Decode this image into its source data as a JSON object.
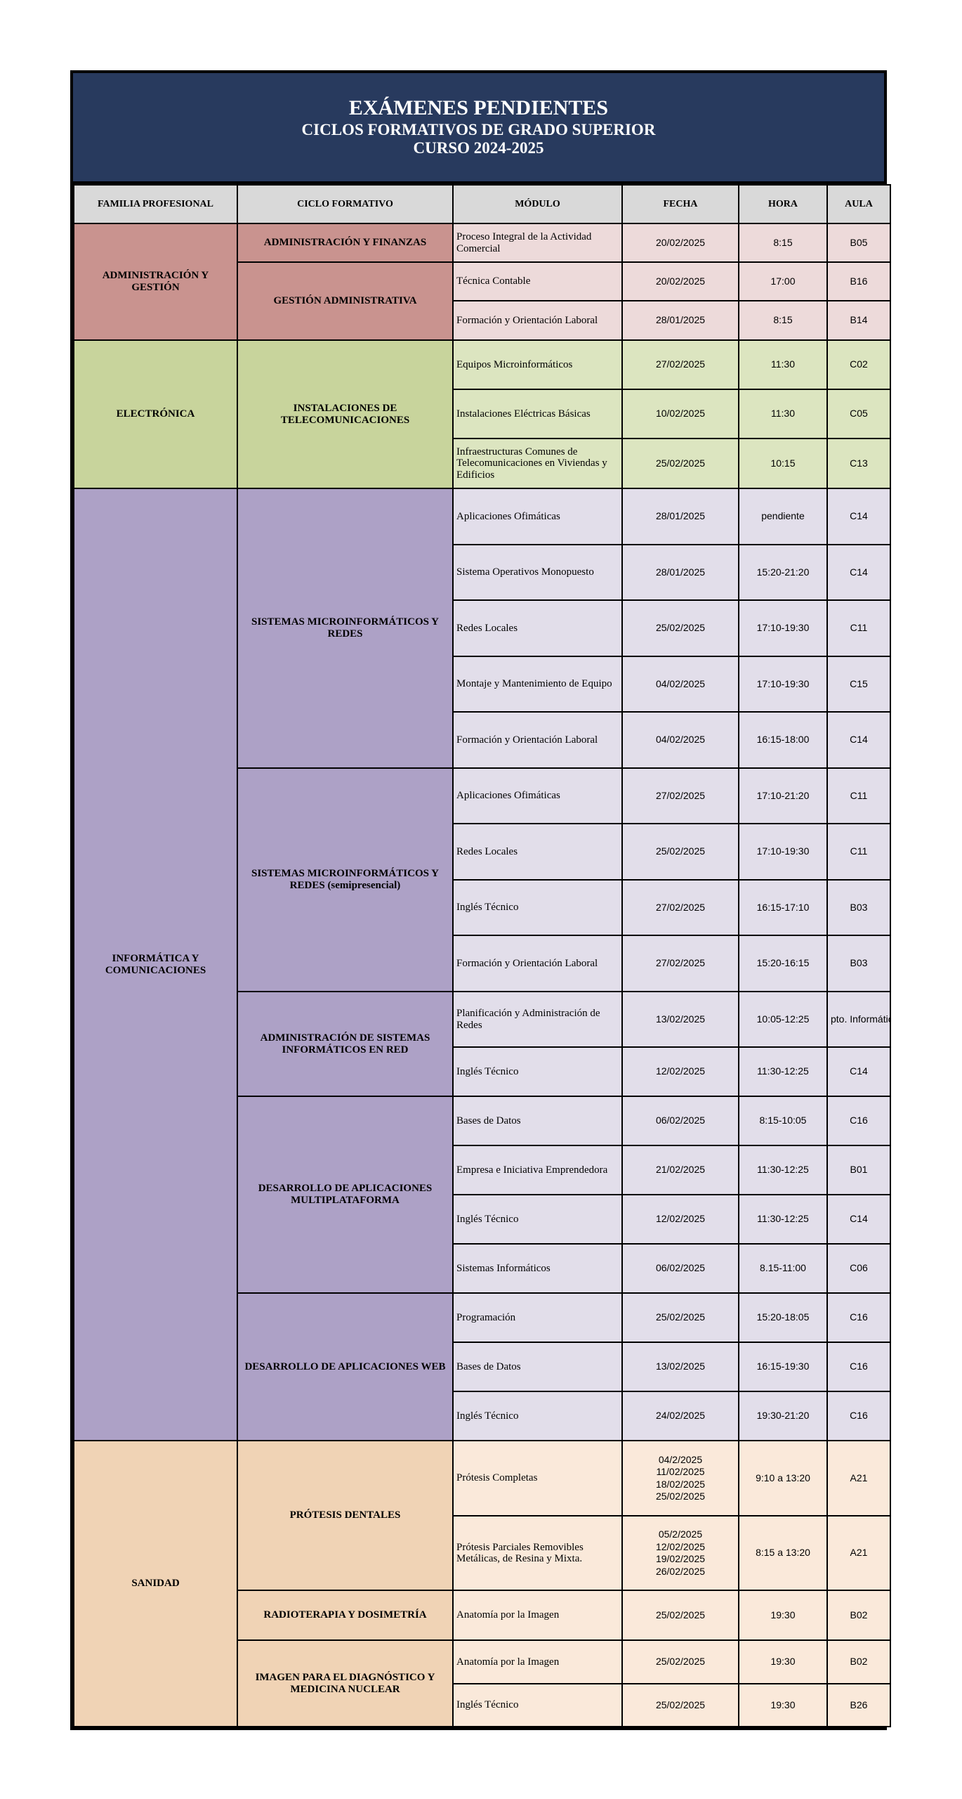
{
  "title": {
    "line1": "EXÁMENES PENDIENTES",
    "line2": "CICLOS FORMATIVOS DE GRADO SUPERIOR",
    "line3": "CURSO 2024-2025"
  },
  "colors": {
    "title_bg": "#283a5e",
    "header_bg": "#d9d9d9"
  },
  "headers": [
    "FAMILIA PROFESIONAL",
    "CICLO FORMATIVO",
    "MÓDULO",
    "FECHA",
    "HORA",
    "AULA"
  ],
  "familias": [
    {
      "name": "ADMINISTRACIÓN Y GESTIÓN",
      "color": "#c9938f",
      "light": "#eddada",
      "ciclos": [
        {
          "name": "ADMINISTRACIÓN Y FINANZAS",
          "modulos": [
            {
              "modulo": " Proceso Integral de la Actividad Comercial",
              "fecha": "20/02/2025",
              "hora": "8:15",
              "aula": "B05"
            }
          ]
        },
        {
          "name": "GESTIÓN ADMINISTRATIVA",
          "modulos": [
            {
              "modulo": "Técnica Contable",
              "fecha": "20/02/2025",
              "hora": "17:00",
              "aula": "B16"
            },
            {
              "modulo": "Formación y Orientación Laboral",
              "fecha": "28/01/2025",
              "hora": "8:15",
              "aula": "B14"
            }
          ]
        }
      ]
    },
    {
      "name": "ELECTRÓNICA",
      "color": "#c8d49c",
      "light": "#dce5c0",
      "ciclos": [
        {
          "name": "INSTALACIONES DE TELECOMUNICACIONES",
          "modulos": [
            {
              "modulo": "Equipos Microinformáticos",
              "fecha": "27/02/2025",
              "hora": "11:30",
              "aula": "C02"
            },
            {
              "modulo": "Instalaciones Eléctricas Básicas",
              "fecha": "10/02/2025",
              "hora": "11:30",
              "aula": "C05"
            },
            {
              "modulo": "Infraestructuras Comunes de Telecomunicaciones en Viviendas y Edificios",
              "fecha": "25/02/2025",
              "hora": "10:15",
              "aula": "C13"
            }
          ]
        }
      ]
    },
    {
      "name": "INFORMÁTICA Y COMUNICACIONES",
      "color": "#ada1c6",
      "light": "#e2deea",
      "ciclos": [
        {
          "name": "SISTEMAS MICROINFORMÁTICOS Y REDES",
          "modulos": [
            {
              "modulo": "Aplicaciones Ofimáticas",
              "fecha": "28/01/2025",
              "hora": "pendiente",
              "aula": "C14"
            },
            {
              "modulo": "Sistema Operativos Monopuesto",
              "fecha": "28/01/2025",
              "hora": "15:20-21:20",
              "aula": "C14"
            },
            {
              "modulo": "Redes Locales",
              "fecha": "25/02/2025",
              "hora": "17:10-19:30",
              "aula": "C11"
            },
            {
              "modulo": "Montaje y Mantenimiento de Equipo",
              "fecha": "04/02/2025",
              "hora": "17:10-19:30",
              "aula": "C15"
            },
            {
              "modulo": "Formación y Orientación Laboral",
              "fecha": "04/02/2025",
              "hora": "16:15-18:00",
              "aula": "C14"
            }
          ]
        },
        {
          "name": "SISTEMAS MICROINFORMÁTICOS Y REDES (semipresencial)",
          "modulos": [
            {
              "modulo": "Aplicaciones Ofimáticas",
              "fecha": "27/02/2025",
              "hora": "17:10-21:20",
              "aula": "C11"
            },
            {
              "modulo": "Redes Locales",
              "fecha": "25/02/2025",
              "hora": "17:10-19:30",
              "aula": "C11"
            },
            {
              "modulo": "Inglés Técnico",
              "fecha": "27/02/2025",
              "hora": "16:15-17:10",
              "aula": "B03"
            },
            {
              "modulo": "Formación y Orientación Laboral",
              "fecha": "27/02/2025",
              "hora": "15:20-16:15",
              "aula": "B03"
            }
          ]
        },
        {
          "name": "ADMINISTRACIÓN DE SISTEMAS INFORMÁTICOS EN RED",
          "modulos": [
            {
              "modulo": "Planificación y Administración de Redes",
              "fecha": "13/02/2025",
              "hora": "10:05-12:25",
              "aula": "pto. Informátic"
            },
            {
              "modulo": "Inglés Técnico",
              "fecha": "12/02/2025",
              "hora": "11:30-12:25",
              "aula": "C14"
            }
          ]
        },
        {
          "name": "DESARROLLO DE APLICACIONES MULTIPLATAFORMA",
          "modulos": [
            {
              "modulo": "Bases de Datos",
              "fecha": "06/02/2025",
              "hora": "8:15-10:05",
              "aula": "C16"
            },
            {
              "modulo": "Empresa e Iniciativa Emprendedora",
              "fecha": "21/02/2025",
              "hora": "11:30-12:25",
              "aula": "B01"
            },
            {
              "modulo": "Inglés Técnico",
              "fecha": "12/02/2025",
              "hora": "11:30-12:25",
              "aula": "C14"
            },
            {
              "modulo": "Sistemas Informáticos",
              "fecha": "06/02/2025",
              "hora": "8.15-11:00",
              "aula": "C06"
            }
          ]
        },
        {
          "name": "DESARROLLO DE APLICACIONES WEB",
          "modulos": [
            {
              "modulo": "Programación",
              "fecha": "25/02/2025",
              "hora": "15:20-18:05",
              "aula": "C16"
            },
            {
              "modulo": "Bases de Datos",
              "fecha": "13/02/2025",
              "hora": "16:15-19:30",
              "aula": "C16"
            },
            {
              "modulo": "Inglés Técnico",
              "fecha": "24/02/2025",
              "hora": "19:30-21:20",
              "aula": "C16"
            }
          ]
        }
      ]
    },
    {
      "name": "SANIDAD",
      "color": "#f0d3b5",
      "light": "#fae9da",
      "ciclos": [
        {
          "name": "PRÓTESIS DENTALES",
          "modulos": [
            {
              "modulo": "Prótesis Completas",
              "fecha": "04/2/2025\n11/02/2025\n18/02/2025\n25/02/2025",
              "hora": "9:10 a 13:20",
              "aula": "A21"
            },
            {
              "modulo": "Prótesis Parciales Removibles Metálicas, de Resina y Mixta.",
              "fecha": "05/2/2025\n12/02/2025\n19/02/2025\n26/02/2025",
              "hora": "8:15 a 13:20",
              "aula": "A21"
            }
          ]
        },
        {
          "name": "RADIOTERAPIA Y DOSIMETRÍA",
          "modulos": [
            {
              "modulo": "Anatomía por la Imagen",
              "fecha": "25/02/2025",
              "hora": "19:30",
              "aula": "B02"
            }
          ]
        },
        {
          "name": "IMAGEN PARA EL DIAGNÓSTICO Y MEDICINA NUCLEAR",
          "modulos": [
            {
              "modulo": "Anatomía por la Imagen",
              "fecha": "25/02/2025",
              "hora": "19:30",
              "aula": "B02"
            },
            {
              "modulo": "Inglés Técnico",
              "fecha": "25/02/2025",
              "hora": "19:30",
              "aula": "B26"
            }
          ]
        }
      ]
    }
  ]
}
